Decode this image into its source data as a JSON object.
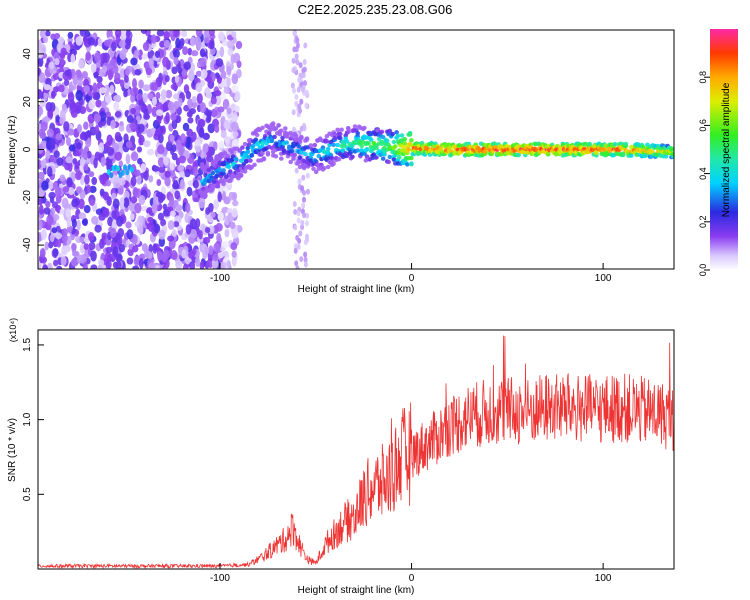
{
  "title": "C2E2.2025.235.23.08.G06",
  "chart_data": [
    {
      "type": "heatmap",
      "xlabel": "Height of straight line (km)",
      "ylabel": "Frequency (Hz)",
      "xlim": [
        -195,
        137
      ],
      "ylim": [
        -50,
        50
      ],
      "xticks": [
        -100,
        0,
        100
      ],
      "xtick_labels": [
        "-100",
        "0",
        "100"
      ],
      "yticks": [
        -40,
        -20,
        0,
        20,
        40
      ],
      "ytick_labels": [
        "-40",
        "-20",
        "0",
        "20",
        "40"
      ],
      "colorbar": {
        "label": "Normalized spectral amplitude",
        "range": [
          0,
          1
        ],
        "ticks": [
          0.0,
          0.2,
          0.4,
          0.6,
          0.8
        ],
        "tick_labels": [
          "0.0",
          "0.2",
          "0.4",
          "0.6",
          "0.8"
        ]
      },
      "signal_track": [
        {
          "x": -150,
          "y": -9,
          "v": 0.3
        },
        {
          "x": -108,
          "y": -13,
          "v": 0.35
        },
        {
          "x": -100,
          "y": -9,
          "v": 0.35
        },
        {
          "x": -90,
          "y": -5,
          "v": 0.4
        },
        {
          "x": -80,
          "y": 2,
          "v": 0.4
        },
        {
          "x": -72,
          "y": 4,
          "v": 0.35
        },
        {
          "x": -60,
          "y": 0,
          "v": 0.35
        },
        {
          "x": -50,
          "y": -3,
          "v": 0.4
        },
        {
          "x": -40,
          "y": 1,
          "v": 0.45
        },
        {
          "x": -30,
          "y": 3,
          "v": 0.5
        },
        {
          "x": -20,
          "y": 2,
          "v": 0.55
        },
        {
          "x": -10,
          "y": 1,
          "v": 0.6
        },
        {
          "x": 0,
          "y": 0.5,
          "v": 0.85
        },
        {
          "x": 20,
          "y": 0,
          "v": 0.9
        },
        {
          "x": 50,
          "y": 0,
          "v": 0.92
        },
        {
          "x": 80,
          "y": 0,
          "v": 0.9
        },
        {
          "x": 110,
          "y": 0,
          "v": 0.88
        },
        {
          "x": 137,
          "y": -1,
          "v": 0.7
        }
      ],
      "noise_band": {
        "x_from": -195,
        "x_to": -90,
        "level": 0.15
      }
    },
    {
      "type": "line",
      "xlabel": "Height of straight line (km)",
      "ylabel": "SNR (10 * v/v)",
      "scale_label": "(x10⁴)",
      "xlim": [
        -195,
        137
      ],
      "ylim": [
        0,
        1.6
      ],
      "xticks": [
        -100,
        0,
        100
      ],
      "xtick_labels": [
        "-100",
        "0",
        "100"
      ],
      "yticks": [
        0.5,
        1.0,
        1.5
      ],
      "ytick_labels": [
        "0.5",
        "1.0",
        "1.5"
      ],
      "color": "#ee3333",
      "envelope": {
        "x": [
          -195,
          -100,
          -85,
          -78,
          -72,
          -66,
          -62,
          -58,
          -54,
          -50,
          -44,
          -36,
          -30,
          -24,
          -18,
          -12,
          -6,
          0,
          10,
          20,
          30,
          40,
          50,
          60,
          70,
          80,
          90,
          100,
          110,
          120,
          130,
          137
        ],
        "y": [
          0.02,
          0.02,
          0.03,
          0.08,
          0.14,
          0.2,
          0.28,
          0.15,
          0.06,
          0.04,
          0.18,
          0.3,
          0.35,
          0.5,
          0.56,
          0.6,
          0.74,
          0.77,
          0.85,
          0.96,
          1.02,
          1.05,
          1.06,
          1.05,
          1.08,
          1.08,
          1.07,
          1.07,
          1.08,
          1.06,
          1.04,
          1.0
        ]
      }
    }
  ]
}
